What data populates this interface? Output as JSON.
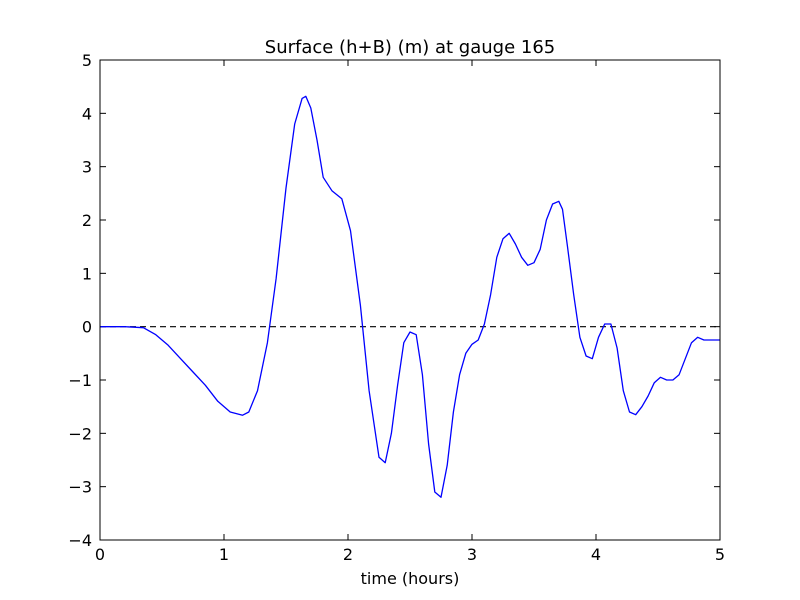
{
  "chart_data": {
    "type": "line",
    "title": "Surface (h+B) (m) at gauge 165",
    "xlabel": "time (hours)",
    "ylabel": "",
    "xlim": [
      0,
      5
    ],
    "ylim": [
      -4,
      5
    ],
    "x_ticks": [
      "0",
      "1",
      "2",
      "3",
      "4",
      "5"
    ],
    "y_ticks": [
      "−4",
      "−3",
      "−2",
      "−1",
      "0",
      "1",
      "2",
      "3",
      "4",
      "5"
    ],
    "grid": false,
    "legend": "none",
    "reference_line": {
      "y": 0,
      "style": "dashed",
      "color": "#000000"
    },
    "series": [
      {
        "color": "#0000ff",
        "x": [
          0,
          0.2,
          0.35,
          0.45,
          0.55,
          0.65,
          0.75,
          0.85,
          0.95,
          1.05,
          1.15,
          1.2,
          1.27,
          1.35,
          1.42,
          1.5,
          1.57,
          1.63,
          1.66,
          1.7,
          1.75,
          1.8,
          1.87,
          1.95,
          2.02,
          2.1,
          2.17,
          2.25,
          2.3,
          2.35,
          2.4,
          2.45,
          2.5,
          2.55,
          2.6,
          2.65,
          2.7,
          2.75,
          2.8,
          2.85,
          2.9,
          2.95,
          3.0,
          3.05,
          3.1,
          3.15,
          3.2,
          3.25,
          3.3,
          3.35,
          3.4,
          3.45,
          3.5,
          3.55,
          3.6,
          3.65,
          3.7,
          3.73,
          3.77,
          3.82,
          3.87,
          3.92,
          3.97,
          4.02,
          4.07,
          4.12,
          4.17,
          4.22,
          4.27,
          4.32,
          4.37,
          4.42,
          4.47,
          4.52,
          4.57,
          4.62,
          4.67,
          4.72,
          4.77,
          4.82,
          4.87,
          4.92,
          5.0
        ],
        "values": [
          0,
          0,
          -0.02,
          -0.15,
          -0.35,
          -0.6,
          -0.85,
          -1.1,
          -1.4,
          -1.6,
          -1.66,
          -1.6,
          -1.2,
          -0.3,
          0.9,
          2.6,
          3.8,
          4.28,
          4.32,
          4.1,
          3.5,
          2.8,
          2.55,
          2.4,
          1.8,
          0.4,
          -1.2,
          -2.45,
          -2.55,
          -2.0,
          -1.1,
          -0.3,
          -0.1,
          -0.15,
          -0.9,
          -2.2,
          -3.1,
          -3.2,
          -2.6,
          -1.6,
          -0.9,
          -0.5,
          -0.33,
          -0.25,
          0.05,
          0.6,
          1.3,
          1.65,
          1.75,
          1.55,
          1.3,
          1.15,
          1.2,
          1.45,
          2.0,
          2.3,
          2.35,
          2.2,
          1.5,
          0.6,
          -0.2,
          -0.55,
          -0.6,
          -0.2,
          0.05,
          0.05,
          -0.4,
          -1.2,
          -1.6,
          -1.65,
          -1.5,
          -1.3,
          -1.05,
          -0.95,
          -1.0,
          -1.0,
          -0.9,
          -0.6,
          -0.3,
          -0.2,
          -0.25,
          -0.25,
          -0.25
        ]
      }
    ]
  }
}
